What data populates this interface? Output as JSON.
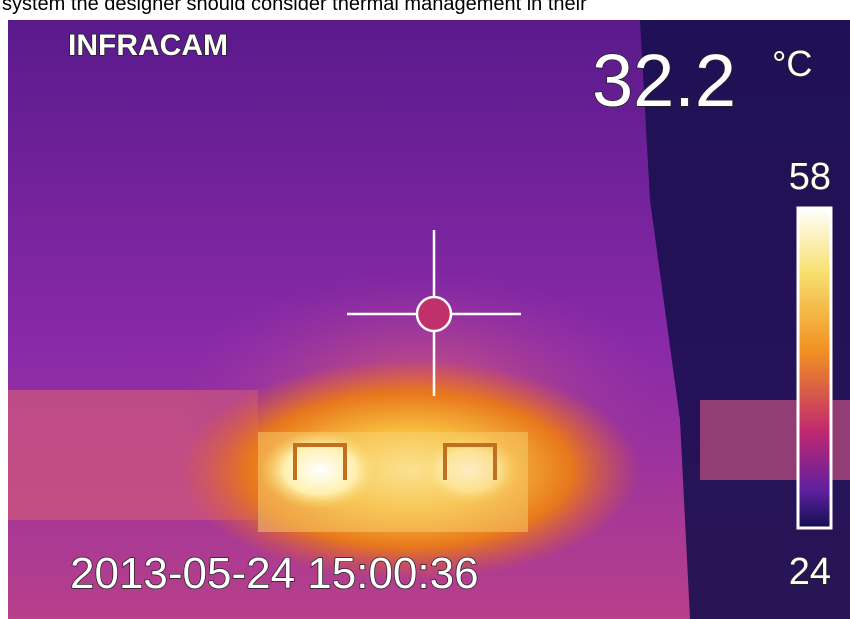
{
  "caption": "system the designer should consider thermal management in their",
  "overlay": {
    "brand": "INFRACAM",
    "temperature": "32.2",
    "unit": "°C",
    "scale": {
      "max": "58",
      "min": "24"
    },
    "timestamp": "2013-05-24 15:00:36"
  }
}
